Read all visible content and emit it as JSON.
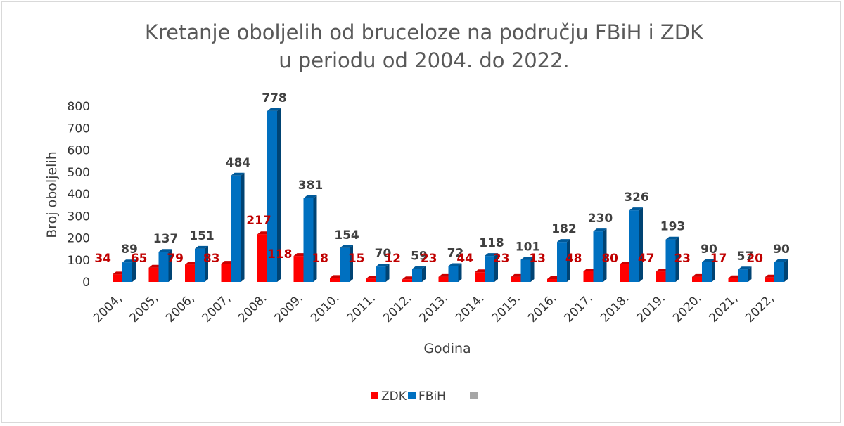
{
  "chart_data": {
    "type": "bar",
    "title_line1": "Kretanje oboljelih od bruceloze na području FBiH i ZDK",
    "title_line2": "u periodu od 2004. do 2022.",
    "xlabel": "Godina",
    "ylabel": "Broj oboljelih",
    "ylim": [
      0,
      800
    ],
    "yticks": [
      "0",
      "100",
      "200",
      "300",
      "400",
      "500",
      "600",
      "700",
      "800"
    ],
    "categories": [
      "2004,",
      "2005,",
      "2006,",
      "2007,",
      "2008.",
      "2009.",
      "2010.",
      "2011.",
      "2012.",
      "2013.",
      "2014.",
      "2015.",
      "2016.",
      "2017.",
      "2018.",
      "2019.",
      "2020.",
      "2021,",
      "2022,"
    ],
    "series": [
      {
        "name": "ZDK",
        "color": "#ff0000",
        "label_color": "#c00000",
        "values": [
          34,
          65,
          79,
          83,
          217,
          118,
          18,
          15,
          12,
          23,
          44,
          23,
          13,
          48,
          80,
          47,
          23,
          17,
          20
        ]
      },
      {
        "name": "FBiH",
        "color": "#0070c0",
        "label_color": "#404040",
        "values": [
          89,
          137,
          151,
          484,
          778,
          381,
          154,
          70,
          59,
          72,
          118,
          101,
          182,
          230,
          326,
          193,
          90,
          57,
          90
        ]
      }
    ],
    "legend": [
      {
        "name": "ZDK",
        "color": "#ff0000"
      },
      {
        "name": "FBiH",
        "color": "#0070c0"
      },
      {
        "name": "",
        "color": "#a6a6a6"
      }
    ],
    "legend_position": "bottom",
    "grid": false,
    "style": "3d-column"
  }
}
